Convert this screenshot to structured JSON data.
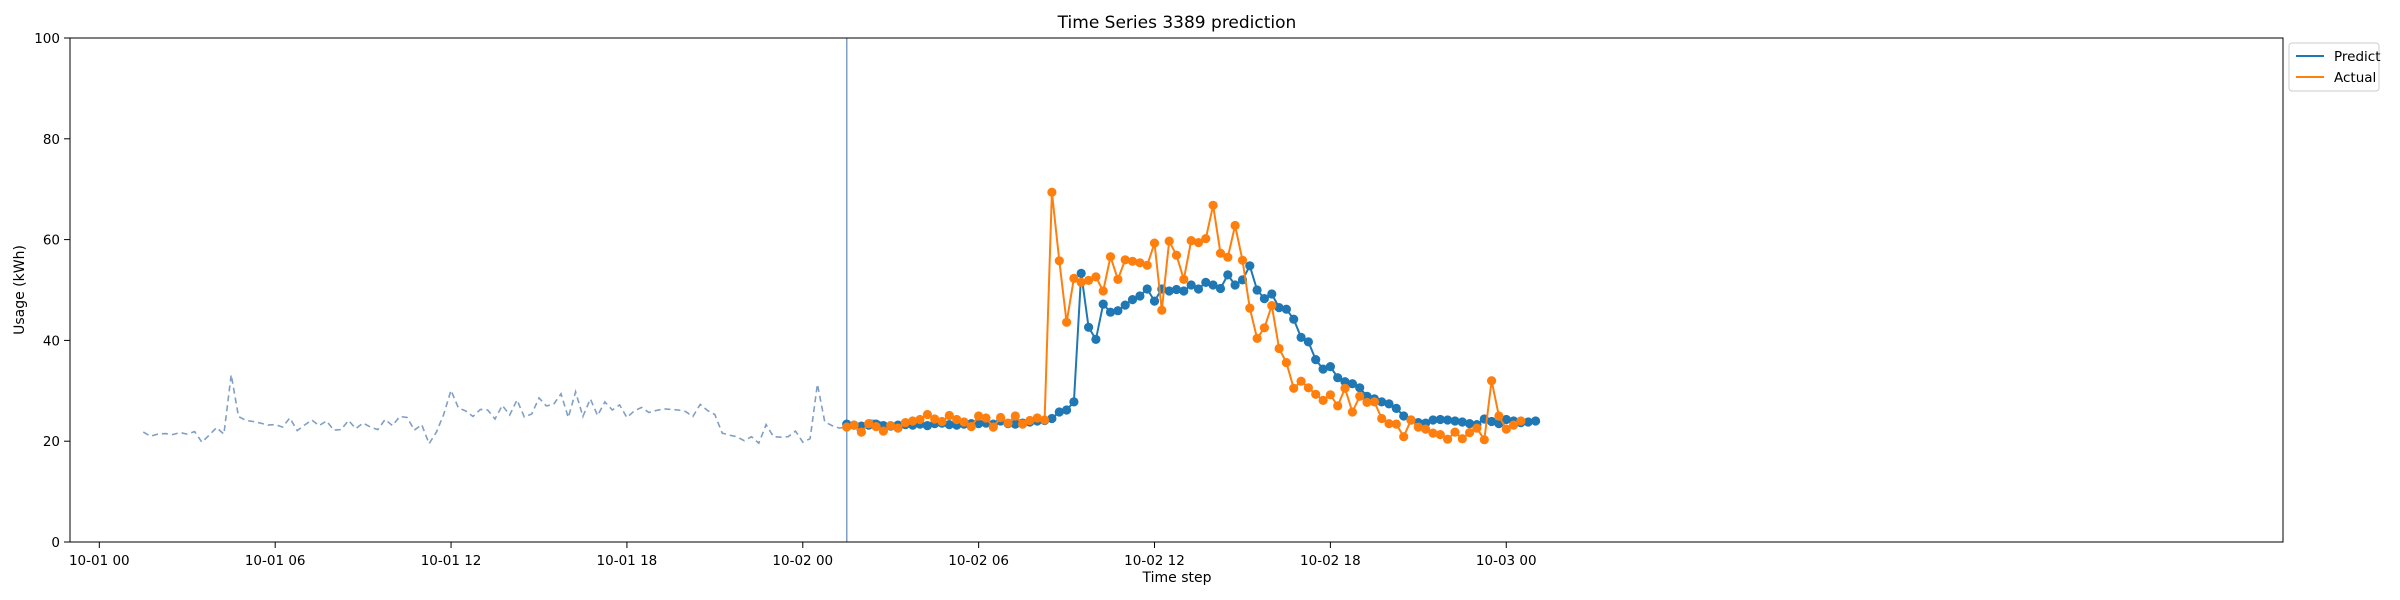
{
  "chart_data": {
    "type": "line",
    "title": "Time Series 3389 prediction",
    "xlabel": "Time step",
    "ylabel": "Usage (kWh)",
    "ylim": [
      0,
      100
    ],
    "yticks": [
      0,
      20,
      40,
      60,
      80,
      100
    ],
    "xlim_hours": [
      -1,
      74.5
    ],
    "xticks": [
      {
        "label": "10-01 00",
        "hour": 0
      },
      {
        "label": "10-01 06",
        "hour": 6
      },
      {
        "label": "10-01 12",
        "hour": 12
      },
      {
        "label": "10-01 18",
        "hour": 18
      },
      {
        "label": "10-02 00",
        "hour": 24
      },
      {
        "label": "10-02 06",
        "hour": 30
      },
      {
        "label": "10-02 12",
        "hour": 36
      },
      {
        "label": "10-02 18",
        "hour": 42
      },
      {
        "label": "10-03 00",
        "hour": 48
      }
    ],
    "vline_hour": 25.5,
    "legend_position": "outside-top-right",
    "history": {
      "start_hour": 1.5,
      "step_hours": 0.25,
      "color": "#7f9fc4",
      "values": [
        21.8,
        21.0,
        21.4,
        21.5,
        21.3,
        21.7,
        21.4,
        21.9,
        19.8,
        21.2,
        22.7,
        21.4,
        33.2,
        24.9,
        24.1,
        23.9,
        23.6,
        23.2,
        23.3,
        22.8,
        24.6,
        22.1,
        23.2,
        24.2,
        23.1,
        24.0,
        22.2,
        22.3,
        24.1,
        22.5,
        23.6,
        22.8,
        22.3,
        24.3,
        23.1,
        24.9,
        24.7,
        22.2,
        23.3,
        19.5,
        21.8,
        25.3,
        30.1,
        26.6,
        26.0,
        24.9,
        26.3,
        26.2,
        24.4,
        27.1,
        25.2,
        28.2,
        24.8,
        25.4,
        28.6,
        27.0,
        27.3,
        29.4,
        24.7,
        29.8,
        24.9,
        28.4,
        25.1,
        27.8,
        26.2,
        27.2,
        24.7,
        26.0,
        26.7,
        25.7,
        26.1,
        26.4,
        26.3,
        26.2,
        25.9,
        24.9,
        27.3,
        26.1,
        25.3,
        21.6,
        21.2,
        20.9,
        20.1,
        20.9,
        19.6,
        23.3,
        20.9,
        20.8,
        20.9,
        22.0,
        19.8,
        20.5,
        31.3,
        23.8,
        23.1,
        22.6,
        22.8,
        22.5,
        21.8,
        24.2,
        24.1,
        23.6
      ]
    },
    "series": [
      {
        "name": "Predict",
        "color": "#1f77b4",
        "start_hour": 25.5,
        "step_hours": 0.25,
        "values": [
          23.4,
          23.2,
          23.0,
          23.2,
          23.4,
          23.1,
          23.0,
          23.2,
          23.3,
          23.2,
          23.4,
          23.1,
          23.5,
          23.6,
          23.3,
          23.2,
          23.4,
          23.5,
          23.5,
          23.6,
          23.4,
          24.0,
          23.5,
          23.4,
          23.6,
          23.8,
          24.0,
          24.1,
          24.5,
          25.8,
          26.2,
          27.8,
          53.3,
          42.6,
          40.2,
          47.2,
          45.6,
          45.9,
          47.0,
          48.1,
          48.8,
          50.2,
          47.8,
          50.2,
          49.8,
          50.1,
          49.8,
          51.0,
          50.2,
          51.5,
          51.0,
          50.3,
          53.0,
          51.0,
          52.0,
          54.8,
          50.0,
          48.3,
          49.2,
          46.5,
          46.2,
          44.2,
          40.6,
          39.7,
          36.2,
          34.3,
          34.8,
          32.6,
          31.8,
          31.4,
          30.6,
          28.9,
          28.4,
          27.8,
          27.4,
          26.5,
          25.0,
          24.2,
          23.7,
          23.6,
          24.2,
          24.3,
          24.2,
          24.0,
          23.8,
          23.5,
          23.3,
          24.4,
          23.9,
          23.5,
          24.3,
          24.0,
          23.7,
          23.8,
          24.0
        ]
      },
      {
        "name": "Actual",
        "color": "#ff7f0e",
        "start_hour": 25.5,
        "step_hours": 0.25,
        "values": [
          22.8,
          23.2,
          21.8,
          23.5,
          22.9,
          22.0,
          23.1,
          22.6,
          23.7,
          24.0,
          24.3,
          25.3,
          24.4,
          23.9,
          25.1,
          24.3,
          23.8,
          22.9,
          25.0,
          24.6,
          22.8,
          24.7,
          23.6,
          25.0,
          23.4,
          24.1,
          24.6,
          24.2,
          69.4,
          55.8,
          43.6,
          52.3,
          51.5,
          51.9,
          52.6,
          49.8,
          56.6,
          52.1,
          56.0,
          55.7,
          55.4,
          54.9,
          59.3,
          46.0,
          59.7,
          56.9,
          52.1,
          59.8,
          59.4,
          60.2,
          66.8,
          57.3,
          56.5,
          62.8,
          55.9,
          46.4,
          40.4,
          42.5,
          46.9,
          38.4,
          35.6,
          30.5,
          31.9,
          30.6,
          29.3,
          28.1,
          29.2,
          27.0,
          30.5,
          25.8,
          28.9,
          27.7,
          27.8,
          24.5,
          23.5,
          23.4,
          20.9,
          24.2,
          22.8,
          22.4,
          21.6,
          21.3,
          20.4,
          21.8,
          20.5,
          21.7,
          22.6,
          20.3,
          32.0,
          25.0,
          22.4,
          23.2,
          24.0
        ]
      }
    ]
  }
}
